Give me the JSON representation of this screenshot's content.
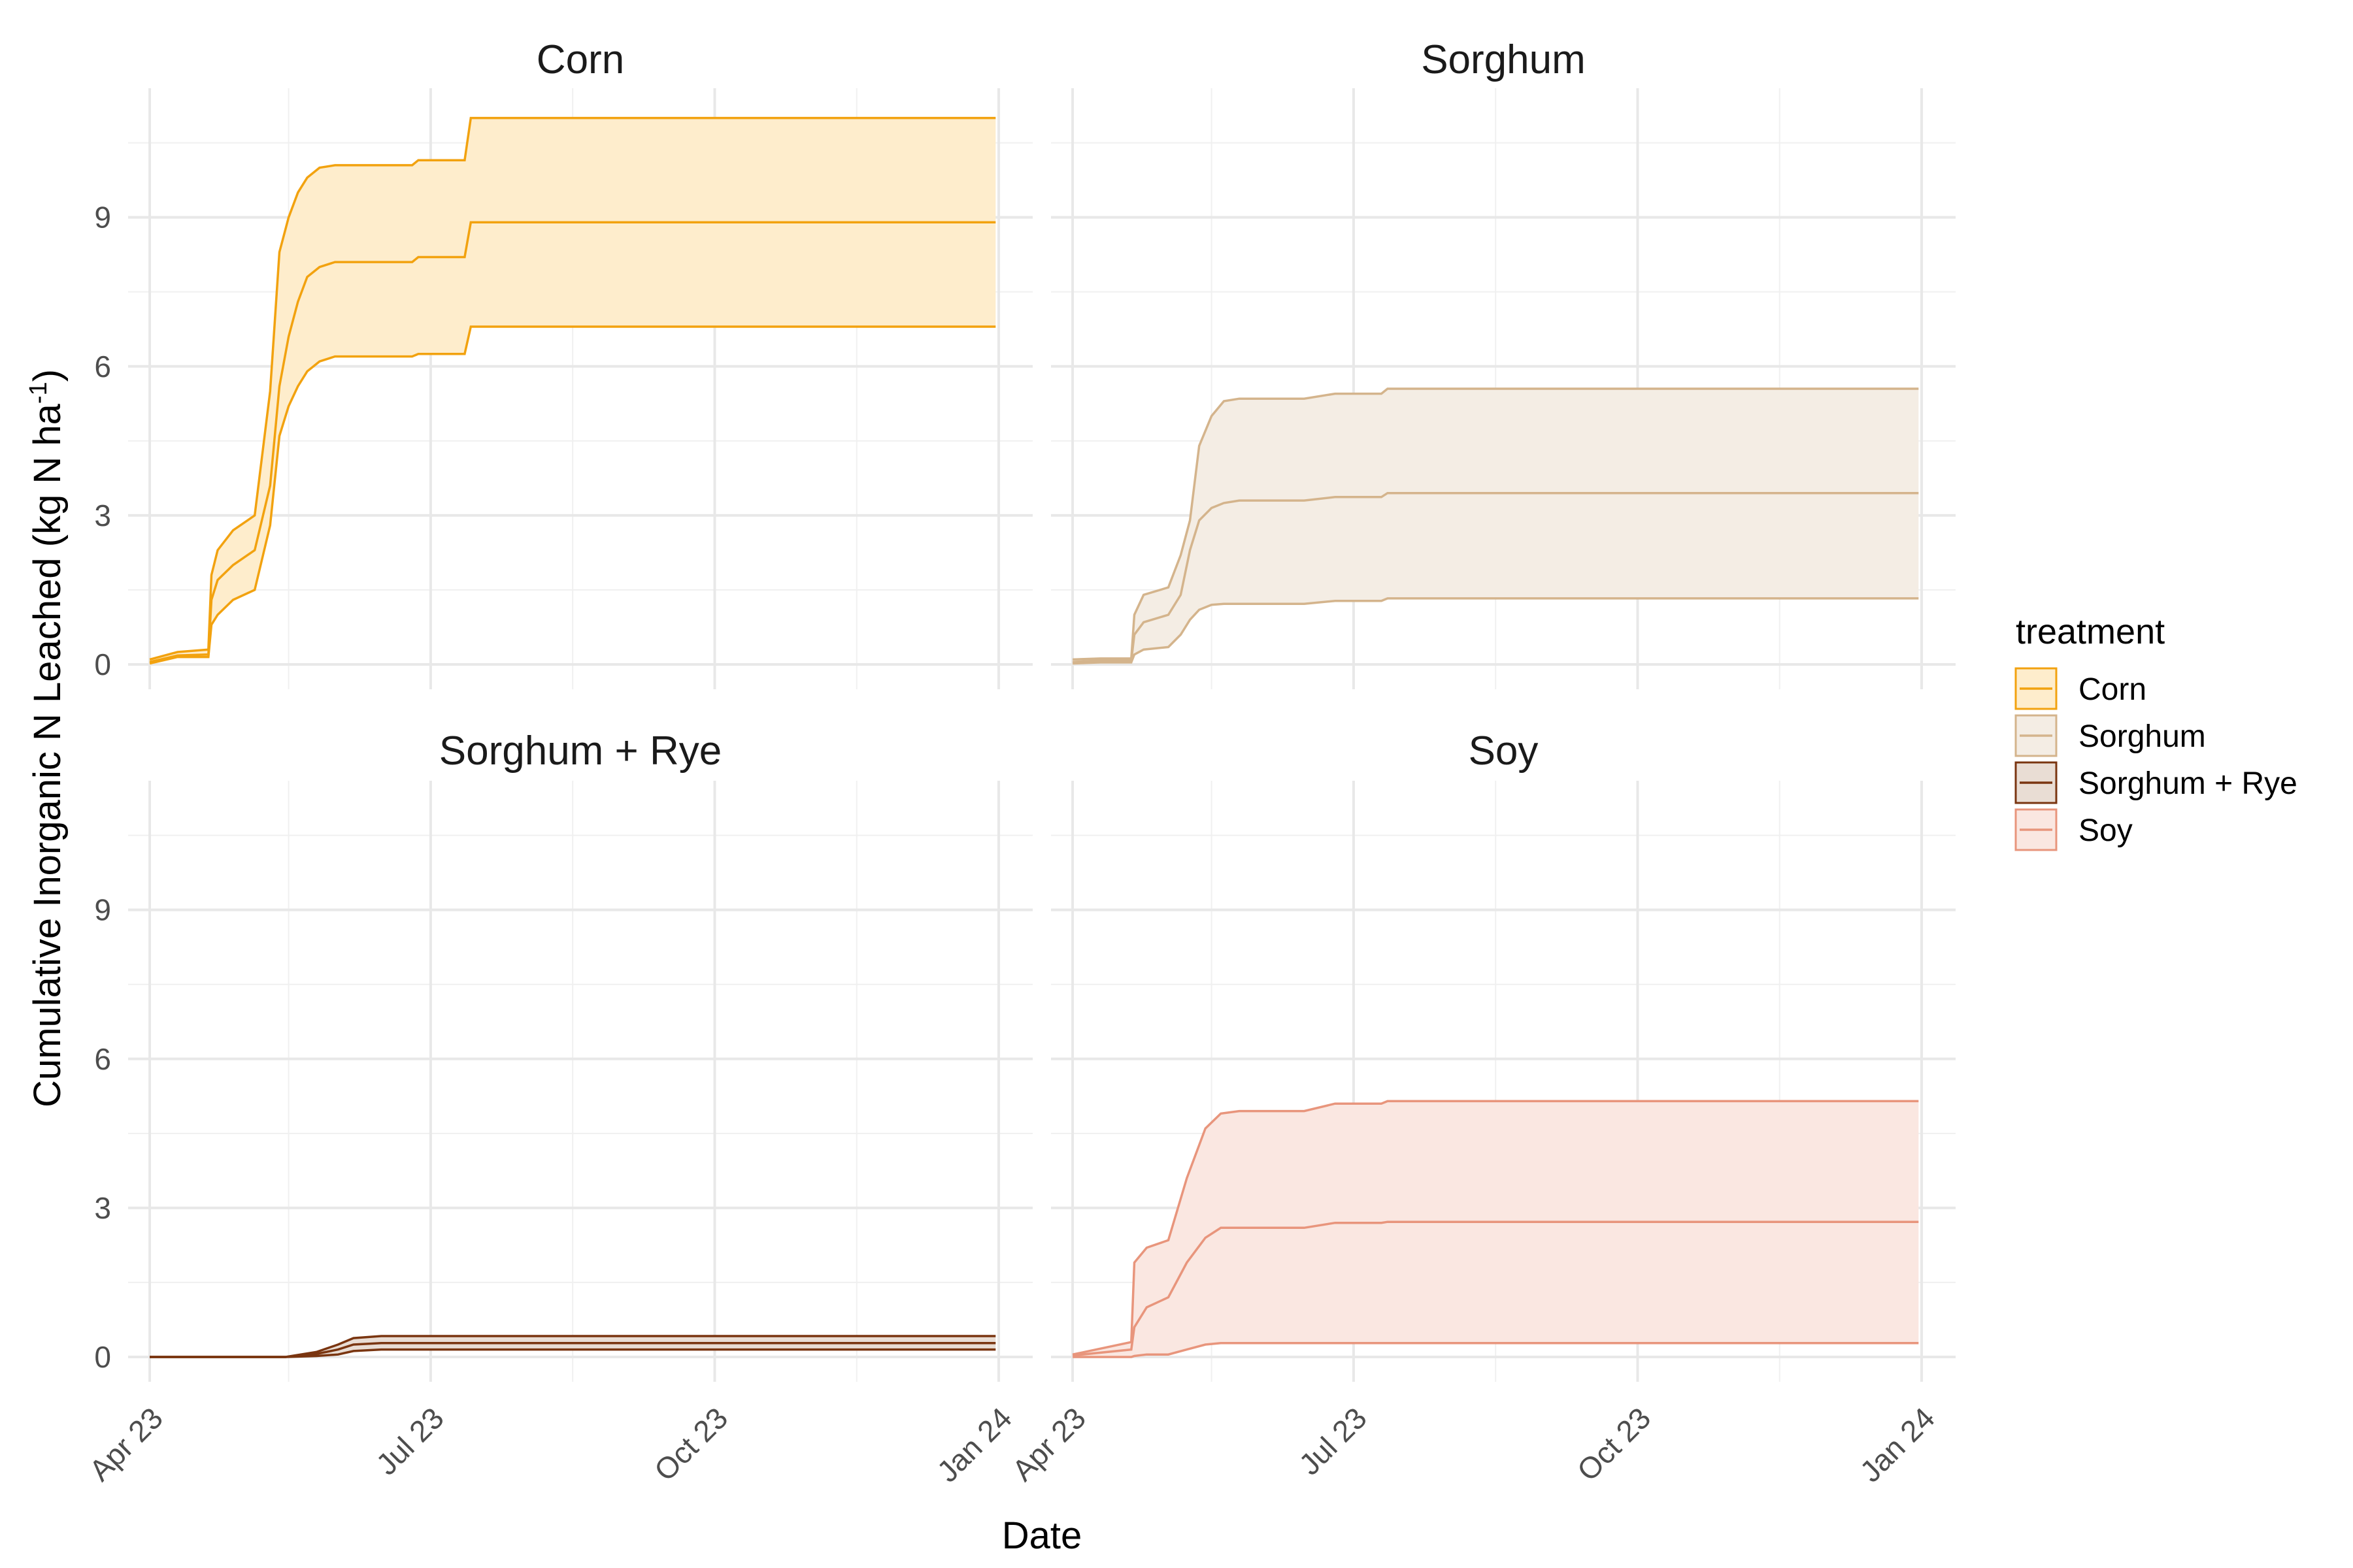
{
  "chart_data": {
    "type": "area",
    "xlabel": "Date",
    "ylabel_main": "Cumulative Inorganic N Leached (kg N ha",
    "ylabel_sup": "-1",
    "ylabel_close": ")",
    "ylim": [
      -0.5,
      11.6
    ],
    "yticks": [
      0,
      3,
      6,
      9
    ],
    "yticklabels": [
      "0",
      "3",
      "6",
      "9"
    ],
    "xlim": [
      "2023-03-25",
      "2024-01-12"
    ],
    "xticks": [
      "2023-04-01",
      "2023-07-01",
      "2023-10-01",
      "2024-01-01"
    ],
    "xticklabels": [
      "Apr 23",
      "Jul 23",
      "Oct 23",
      "Jan 24"
    ],
    "x_minor_ticks": [
      "2023-05-16",
      "2023-08-16",
      "2023-11-16"
    ],
    "grid": true,
    "legend": {
      "title": "treatment",
      "placement": "right",
      "entries": [
        {
          "label": "Corn",
          "color": "#F2A20F",
          "fill": "#FEEDCC"
        },
        {
          "label": "Sorghum",
          "color": "#D4B48C",
          "fill": "#F4EDE4"
        },
        {
          "label": "Sorghum + Rye",
          "color": "#7A3510",
          "fill": "#E9DDD4"
        },
        {
          "label": "Soy",
          "color": "#E8957C",
          "fill": "#FAE7E1"
        }
      ]
    },
    "panels": [
      {
        "title": "Corn",
        "color": "#F2A20F",
        "fill": "#FEEDCC",
        "x": [
          "2023-04-01",
          "2023-04-10",
          "2023-04-20",
          "2023-04-21",
          "2023-04-23",
          "2023-04-28",
          "2023-05-05",
          "2023-05-10",
          "2023-05-13",
          "2023-05-16",
          "2023-05-19",
          "2023-05-22",
          "2023-05-26",
          "2023-05-31",
          "2023-06-07",
          "2023-06-15",
          "2023-06-25",
          "2023-06-27",
          "2023-07-12",
          "2023-07-14",
          "2023-12-31"
        ],
        "upper": [
          0.1,
          0.25,
          0.3,
          1.8,
          2.3,
          2.7,
          3.0,
          5.5,
          8.3,
          9.0,
          9.5,
          9.8,
          10.0,
          10.05,
          10.05,
          10.05,
          10.05,
          10.15,
          10.15,
          11.0,
          11.0
        ],
        "middle": [
          0.05,
          0.18,
          0.2,
          1.3,
          1.7,
          2.0,
          2.3,
          3.6,
          5.6,
          6.6,
          7.3,
          7.8,
          8.0,
          8.1,
          8.1,
          8.1,
          8.1,
          8.2,
          8.2,
          8.9,
          8.9
        ],
        "lower": [
          0.02,
          0.15,
          0.15,
          0.8,
          1.0,
          1.3,
          1.5,
          2.8,
          4.6,
          5.2,
          5.6,
          5.9,
          6.1,
          6.2,
          6.2,
          6.2,
          6.2,
          6.25,
          6.25,
          6.8,
          6.8
        ]
      },
      {
        "title": "Sorghum",
        "color": "#D4B48C",
        "fill": "#F4EDE4",
        "x": [
          "2023-04-01",
          "2023-04-10",
          "2023-04-20",
          "2023-04-21",
          "2023-04-24",
          "2023-05-02",
          "2023-05-06",
          "2023-05-09",
          "2023-05-12",
          "2023-05-16",
          "2023-05-20",
          "2023-05-25",
          "2023-06-10",
          "2023-06-15",
          "2023-06-25",
          "2023-07-10",
          "2023-07-12",
          "2023-12-31"
        ],
        "upper": [
          0.1,
          0.12,
          0.12,
          1.0,
          1.4,
          1.55,
          2.2,
          2.9,
          4.4,
          5.0,
          5.3,
          5.35,
          5.35,
          5.35,
          5.45,
          5.45,
          5.55,
          5.55
        ],
        "middle": [
          0.05,
          0.08,
          0.08,
          0.6,
          0.85,
          1.0,
          1.4,
          2.3,
          2.9,
          3.15,
          3.25,
          3.3,
          3.3,
          3.3,
          3.37,
          3.37,
          3.45,
          3.45
        ],
        "lower": [
          0.02,
          0.04,
          0.04,
          0.2,
          0.3,
          0.35,
          0.6,
          0.9,
          1.1,
          1.2,
          1.22,
          1.22,
          1.22,
          1.22,
          1.28,
          1.28,
          1.33,
          1.33
        ]
      },
      {
        "title": "Sorghum + Rye",
        "color": "#7A3510",
        "fill": "#E9DDD4",
        "x": [
          "2023-04-01",
          "2023-05-15",
          "2023-05-25",
          "2023-06-01",
          "2023-06-06",
          "2023-06-15",
          "2023-07-10",
          "2023-12-31"
        ],
        "upper": [
          0.0,
          0.0,
          0.1,
          0.25,
          0.38,
          0.42,
          0.42,
          0.42
        ],
        "middle": [
          0.0,
          0.0,
          0.06,
          0.15,
          0.25,
          0.28,
          0.28,
          0.28
        ],
        "lower": [
          0.0,
          0.0,
          0.02,
          0.05,
          0.12,
          0.15,
          0.15,
          0.15
        ]
      },
      {
        "title": "Soy",
        "color": "#E8957C",
        "fill": "#FAE7E1",
        "x": [
          "2023-04-01",
          "2023-04-20",
          "2023-04-21",
          "2023-04-25",
          "2023-05-02",
          "2023-05-08",
          "2023-05-14",
          "2023-05-19",
          "2023-05-25",
          "2023-06-10",
          "2023-06-15",
          "2023-06-25",
          "2023-07-10",
          "2023-07-12",
          "2023-12-31"
        ],
        "upper": [
          0.05,
          0.3,
          1.9,
          2.2,
          2.35,
          3.6,
          4.6,
          4.9,
          4.95,
          4.95,
          4.95,
          5.1,
          5.1,
          5.15,
          5.15
        ],
        "middle": [
          0.03,
          0.15,
          0.6,
          1.0,
          1.2,
          1.9,
          2.4,
          2.6,
          2.6,
          2.6,
          2.6,
          2.7,
          2.7,
          2.72,
          2.72
        ],
        "lower": [
          0.0,
          0.0,
          0.02,
          0.05,
          0.05,
          0.15,
          0.25,
          0.28,
          0.28,
          0.28,
          0.28,
          0.28,
          0.28,
          0.28,
          0.28
        ]
      }
    ]
  }
}
